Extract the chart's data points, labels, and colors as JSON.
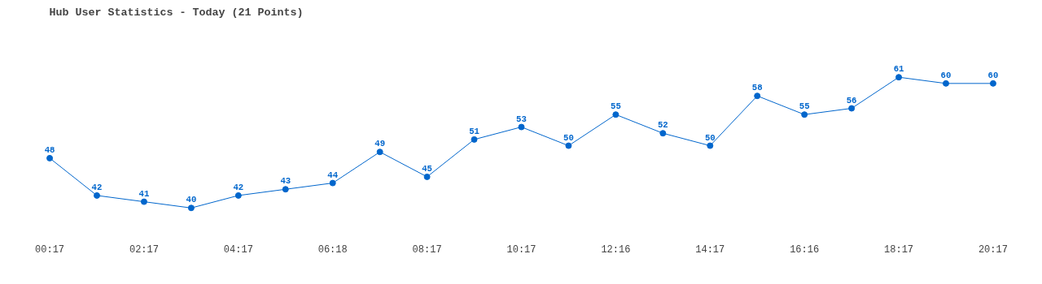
{
  "chart_data": {
    "type": "line",
    "title": "Hub User Statistics - Today (21 Points)",
    "categories": [
      "00:17",
      null,
      "02:17",
      null,
      "04:17",
      null,
      "06:18",
      null,
      "08:17",
      null,
      "10:17",
      null,
      "12:16",
      null,
      "14:17",
      null,
      "16:16",
      null,
      "18:17",
      null,
      "20:17"
    ],
    "series": [
      {
        "color": "#0066cc",
        "values": [
          48,
          42,
          41,
          40,
          42,
          43,
          44,
          49,
          45,
          51,
          53,
          50,
          55,
          52,
          50,
          58,
          55,
          56,
          61,
          60,
          60
        ]
      }
    ],
    "data_labels": true,
    "marker": "circle",
    "line_style": "solid",
    "grid": false
  }
}
